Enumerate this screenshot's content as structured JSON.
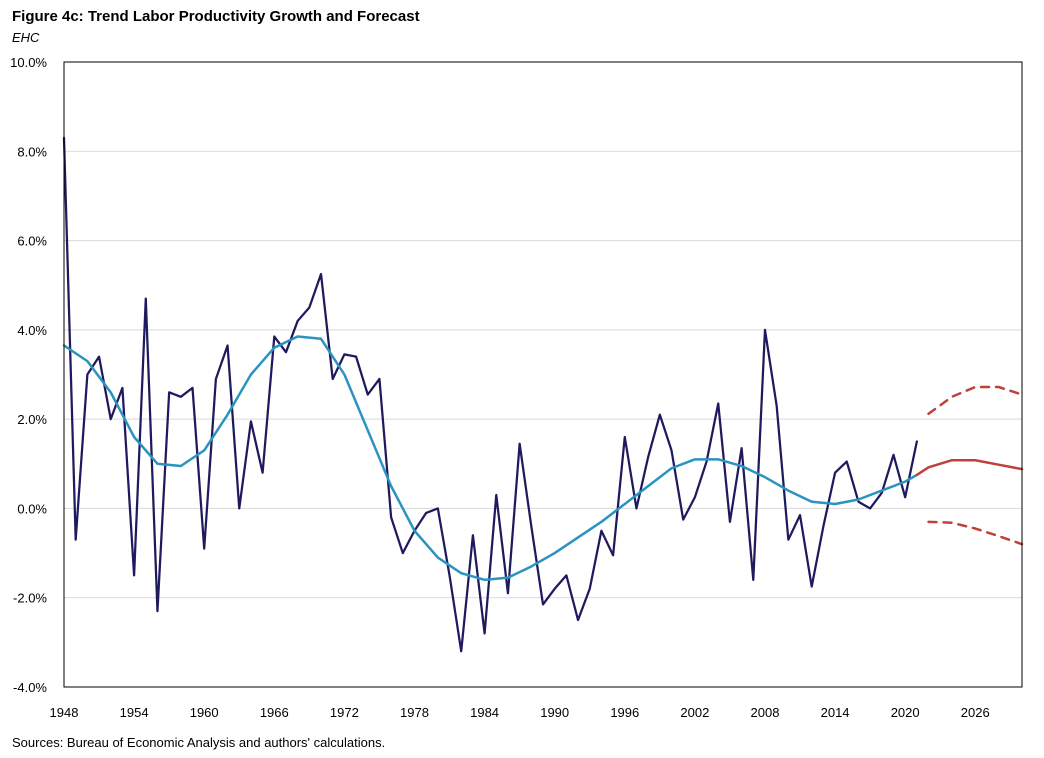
{
  "header": {
    "title": "Figure 4c: Trend Labor Productivity Growth and Forecast",
    "subtitle": "EHC"
  },
  "footer": {
    "source": "Sources: Bureau of Economic Analysis and authors' calculations."
  },
  "colors": {
    "actual": "#1f1a5e",
    "trend": "#2a93c0",
    "forecast": "#c0413a",
    "grid": "#d9d9d9",
    "frame": "#000000"
  },
  "chart_data": {
    "type": "line",
    "title": "Figure 4c: Trend Labor Productivity Growth and Forecast",
    "xlabel": "",
    "ylabel": "",
    "xlim": [
      1948,
      2030
    ],
    "ylim": [
      -4.0,
      10.0
    ],
    "x_ticks": [
      1948,
      1954,
      1960,
      1966,
      1972,
      1978,
      1984,
      1990,
      1996,
      2002,
      2008,
      2014,
      2020,
      2026
    ],
    "y_ticks": [
      -4.0,
      -2.0,
      0.0,
      2.0,
      4.0,
      6.0,
      8.0,
      10.0
    ],
    "y_tick_labels": [
      "-4.0%",
      "-2.0%",
      "0.0%",
      "2.0%",
      "4.0%",
      "6.0%",
      "8.0%",
      "10.0%"
    ],
    "grid": "horizontal",
    "legend": "none",
    "series": [
      {
        "name": "Labor productivity growth",
        "style": "solid",
        "x": [
          1948,
          1949,
          1950,
          1951,
          1952,
          1953,
          1954,
          1955,
          1956,
          1957,
          1958,
          1959,
          1960,
          1961,
          1962,
          1963,
          1964,
          1965,
          1966,
          1967,
          1968,
          1969,
          1970,
          1971,
          1972,
          1973,
          1974,
          1975,
          1976,
          1977,
          1978,
          1979,
          1980,
          1981,
          1982,
          1983,
          1984,
          1985,
          1986,
          1987,
          1988,
          1989,
          1990,
          1991,
          1992,
          1993,
          1994,
          1995,
          1996,
          1997,
          1998,
          1999,
          2000,
          2001,
          2002,
          2003,
          2004,
          2005,
          2006,
          2007,
          2008,
          2009,
          2010,
          2011,
          2012,
          2013,
          2014,
          2015,
          2016,
          2017,
          2018,
          2019,
          2020,
          2021
        ],
        "values": [
          8.3,
          -0.7,
          3.0,
          3.4,
          2.0,
          2.7,
          -1.5,
          4.7,
          -2.3,
          2.6,
          2.5,
          2.7,
          -0.9,
          2.9,
          3.65,
          0.0,
          1.95,
          0.8,
          3.85,
          3.5,
          4.2,
          4.5,
          5.25,
          2.9,
          3.45,
          3.4,
          2.55,
          2.9,
          -0.2,
          -1.0,
          -0.5,
          -0.1,
          0.0,
          -1.5,
          -3.2,
          -0.6,
          -2.8,
          0.3,
          -1.9,
          1.45,
          -0.4,
          -2.15,
          -1.8,
          -1.5,
          -2.5,
          -1.8,
          -0.5,
          -1.05,
          1.6,
          0.0,
          1.15,
          2.1,
          1.3,
          -0.25,
          0.25,
          1.05,
          2.35,
          -0.3,
          1.35,
          -1.6,
          4.0,
          2.3,
          -0.7,
          -0.15,
          -1.75,
          -0.4,
          0.8,
          1.05,
          0.15,
          0.0,
          0.35,
          1.2,
          0.25,
          1.5
        ]
      },
      {
        "name": "Trend",
        "style": "solid",
        "x": [
          1948,
          1950,
          1952,
          1954,
          1956,
          1958,
          1960,
          1962,
          1964,
          1966,
          1968,
          1970,
          1972,
          1974,
          1976,
          1978,
          1980,
          1982,
          1984,
          1986,
          1988,
          1990,
          1992,
          1994,
          1996,
          1998,
          2000,
          2002,
          2004,
          2006,
          2008,
          2010,
          2012,
          2014,
          2016,
          2018,
          2020,
          2021
        ],
        "values": [
          3.65,
          3.3,
          2.6,
          1.6,
          1.0,
          0.95,
          1.3,
          2.1,
          3.0,
          3.6,
          3.85,
          3.8,
          3.0,
          1.75,
          0.5,
          -0.5,
          -1.1,
          -1.45,
          -1.6,
          -1.55,
          -1.3,
          -1.0,
          -0.65,
          -0.3,
          0.1,
          0.5,
          0.9,
          1.1,
          1.1,
          0.95,
          0.7,
          0.4,
          0.15,
          0.1,
          0.2,
          0.4,
          0.6,
          0.75
        ]
      },
      {
        "name": "Forecast",
        "style": "solid",
        "x": [
          2021,
          2022,
          2024,
          2026,
          2028,
          2030
        ],
        "values": [
          0.75,
          0.92,
          1.08,
          1.08,
          0.98,
          0.88
        ]
      },
      {
        "name": "Forecast upper bound",
        "style": "dashed",
        "x": [
          2022,
          2024,
          2026,
          2028,
          2030
        ],
        "values": [
          2.12,
          2.5,
          2.72,
          2.72,
          2.55
        ]
      },
      {
        "name": "Forecast lower bound",
        "style": "dashed",
        "x": [
          2022,
          2024,
          2026,
          2028,
          2030
        ],
        "values": [
          -0.3,
          -0.32,
          -0.45,
          -0.62,
          -0.8
        ]
      }
    ]
  }
}
